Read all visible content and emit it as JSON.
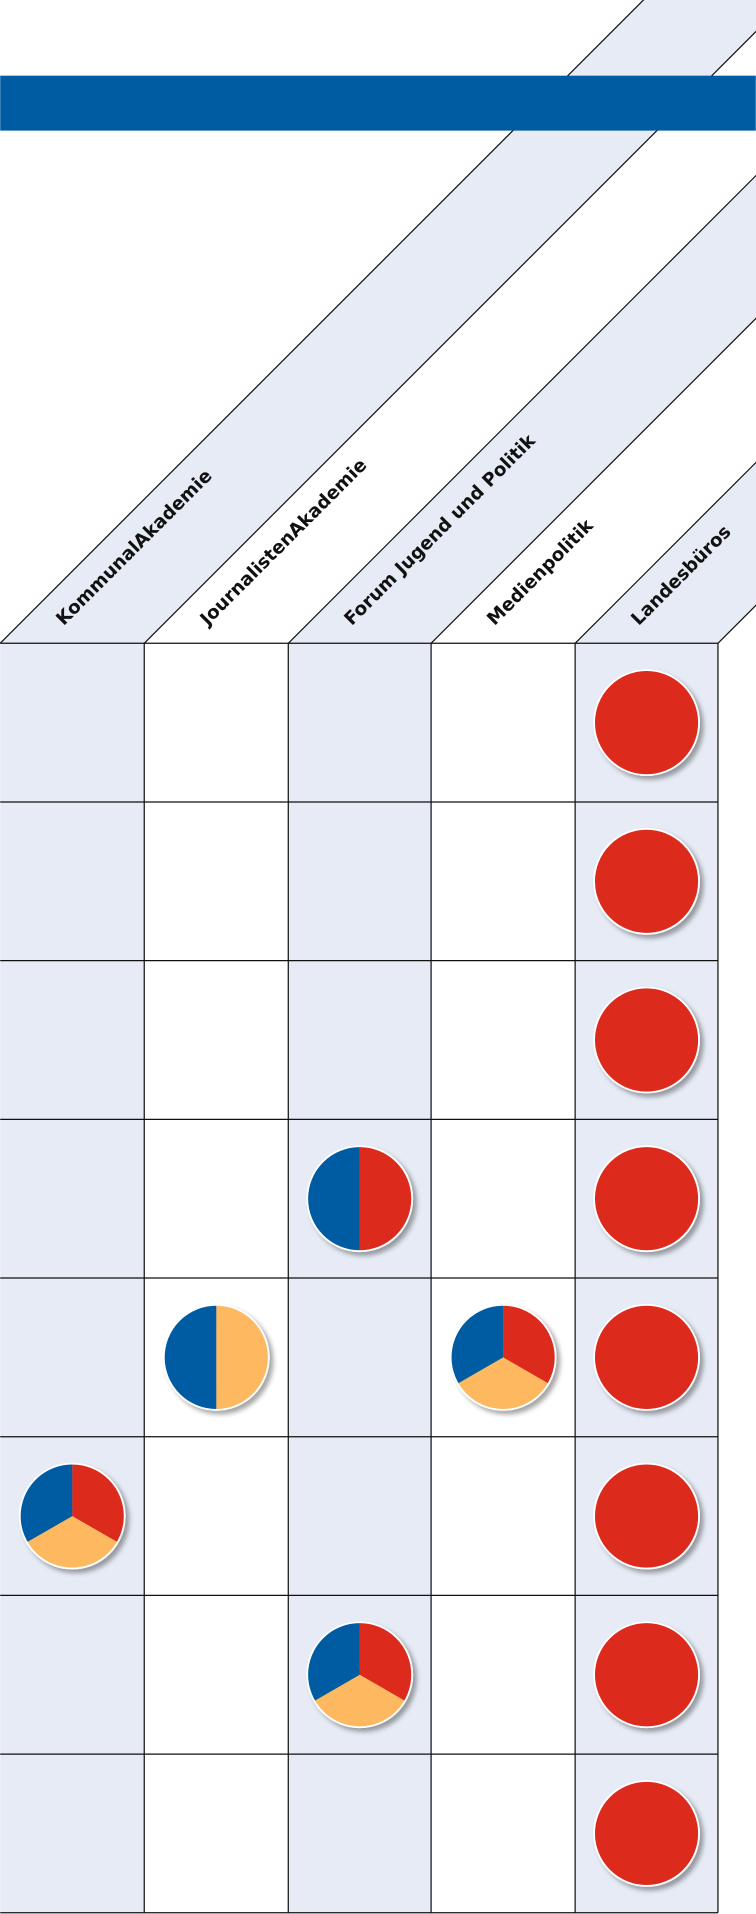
{
  "columns": [
    "KommunalAkademie",
    "JournalistenAkademie",
    "Forum Jugend und Politik",
    "Medienpolitik",
    "Landesbüros"
  ],
  "colors": {
    "red": "#dc2b1e",
    "blue": "#005ca2",
    "orange": "#fdb860",
    "stripe": "#e6ebf5"
  },
  "rows": [
    [
      null,
      null,
      null,
      null,
      [
        "red"
      ]
    ],
    [
      null,
      null,
      null,
      null,
      [
        "red"
      ]
    ],
    [
      null,
      null,
      null,
      null,
      [
        "red"
      ]
    ],
    [
      null,
      null,
      [
        "red",
        "blue"
      ],
      null,
      [
        "red"
      ]
    ],
    [
      null,
      [
        "orange",
        "blue"
      ],
      null,
      [
        "red",
        "orange",
        "blue"
      ],
      [
        "red"
      ]
    ],
    [
      [
        "red",
        "orange",
        "blue"
      ],
      null,
      null,
      null,
      [
        "red"
      ]
    ],
    [
      null,
      null,
      [
        "red",
        "orange",
        "blue"
      ],
      null,
      [
        "red"
      ]
    ],
    [
      null,
      null,
      null,
      null,
      [
        "red"
      ]
    ]
  ]
}
